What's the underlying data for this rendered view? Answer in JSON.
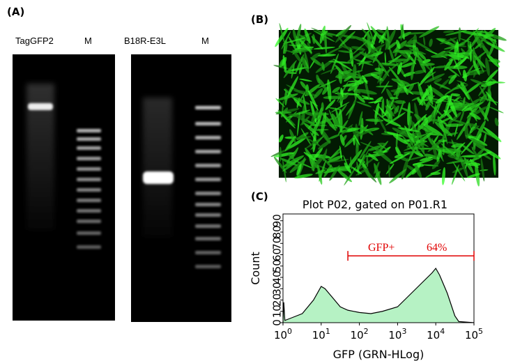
{
  "panels": {
    "a": {
      "label": "(A)",
      "lanes": [
        "TagGFP2",
        "M",
        "B18R-E3L",
        "M"
      ]
    },
    "b": {
      "label": "(B)"
    },
    "c": {
      "label": "(C)"
    }
  },
  "chart_data": {
    "type": "area",
    "title": "Plot P02, gated on P01.R1",
    "x_label": "GFP (GRN-HLog)",
    "y_label": "Count",
    "x": [
      1,
      1.05,
      1.12,
      1.6,
      3.2,
      6.3,
      10,
      12.6,
      20,
      31.6,
      50,
      100,
      200,
      400,
      1000,
      2000,
      4000,
      8000,
      10000,
      12600,
      20000,
      31600,
      40000,
      100000
    ],
    "values": [
      0,
      18,
      2,
      4,
      8,
      20,
      32,
      30,
      22,
      14,
      11,
      9,
      8,
      10,
      14,
      24,
      34,
      44,
      48,
      42,
      26,
      6,
      1,
      0
    ],
    "color": "#b6f2c4",
    "line_color": "#000000",
    "xlim": [
      1,
      100000
    ],
    "ylim": [
      0,
      96
    ],
    "log_x": true,
    "xticks": [
      {
        "value": 1,
        "label": "10",
        "exponent": "0"
      },
      {
        "value": 10,
        "label": "10",
        "exponent": "1"
      },
      {
        "value": 100,
        "label": "10",
        "exponent": "2"
      },
      {
        "value": 1000,
        "label": "10",
        "exponent": "3"
      },
      {
        "value": 10000,
        "label": "10",
        "exponent": "4"
      },
      {
        "value": 100000,
        "label": "10",
        "exponent": "5"
      }
    ],
    "yticks": [
      0,
      10,
      20,
      30,
      40,
      50,
      60,
      70,
      80,
      90
    ],
    "gate": {
      "name": "GFP+",
      "x": [
        50,
        100000
      ],
      "y": 59,
      "value": 64,
      "value_label": "64%",
      "color": "#e00000"
    }
  }
}
